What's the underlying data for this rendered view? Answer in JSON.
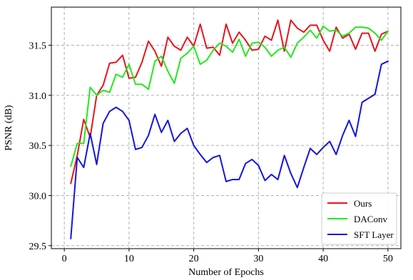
{
  "chart_data": {
    "type": "line",
    "title": "",
    "xlabel": "Number of Epochs",
    "ylabel": "PSNR (dB)",
    "xlim": [
      -2,
      52
    ],
    "ylim": [
      29.47,
      31.88
    ],
    "xticks": [
      0,
      10,
      20,
      30,
      40,
      50
    ],
    "yticks": [
      29.5,
      30.0,
      30.5,
      31.0,
      31.5
    ],
    "ytick_labels": [
      "29.5",
      "30.0",
      "30.5",
      "31.0",
      "31.5"
    ],
    "grid": true,
    "grid_style": "dashed",
    "legend_position": "lower-right",
    "x": [
      1,
      2,
      3,
      4,
      5,
      6,
      7,
      8,
      9,
      10,
      11,
      12,
      13,
      14,
      15,
      16,
      17,
      18,
      19,
      20,
      21,
      22,
      23,
      24,
      25,
      26,
      27,
      28,
      29,
      30,
      31,
      32,
      33,
      34,
      35,
      36,
      37,
      38,
      39,
      40,
      41,
      42,
      43,
      44,
      45,
      46,
      47,
      48,
      49,
      50
    ],
    "series": [
      {
        "name": "Ours",
        "color": "#e8141c",
        "values": [
          30.12,
          30.4,
          30.76,
          30.58,
          31.0,
          31.1,
          31.32,
          31.33,
          31.4,
          31.17,
          31.18,
          31.33,
          31.54,
          31.44,
          31.29,
          31.58,
          31.49,
          31.45,
          31.58,
          31.49,
          31.71,
          31.47,
          31.48,
          31.4,
          31.71,
          31.52,
          31.63,
          31.55,
          31.45,
          31.46,
          31.59,
          31.55,
          31.75,
          31.44,
          31.75,
          31.67,
          31.63,
          31.7,
          31.7,
          31.55,
          31.44,
          31.68,
          31.57,
          31.61,
          31.46,
          31.62,
          31.62,
          31.44,
          31.61,
          31.64
        ]
      },
      {
        "name": "DAConv",
        "color": "#22e81e",
        "values": [
          30.29,
          30.52,
          30.52,
          31.08,
          31.0,
          31.05,
          31.03,
          31.21,
          31.18,
          31.31,
          31.11,
          31.11,
          31.06,
          31.34,
          31.39,
          31.24,
          31.12,
          31.37,
          31.42,
          31.49,
          31.31,
          31.35,
          31.45,
          31.52,
          31.49,
          31.43,
          31.56,
          31.39,
          31.52,
          31.53,
          31.48,
          31.39,
          31.45,
          31.48,
          31.38,
          31.52,
          31.58,
          31.65,
          31.57,
          31.69,
          31.64,
          31.65,
          31.59,
          31.62,
          31.68,
          31.68,
          31.67,
          31.62,
          31.55,
          31.64
        ]
      },
      {
        "name": "SFT Layer",
        "color": "#1414e0",
        "values": [
          29.57,
          30.38,
          30.28,
          30.62,
          30.31,
          30.72,
          30.84,
          30.88,
          30.84,
          30.75,
          30.46,
          30.48,
          30.6,
          30.81,
          30.63,
          30.75,
          30.54,
          30.62,
          30.67,
          30.5,
          30.41,
          30.33,
          30.38,
          30.4,
          30.14,
          30.16,
          30.16,
          30.32,
          30.36,
          30.3,
          30.15,
          30.21,
          30.16,
          30.4,
          30.22,
          30.08,
          30.28,
          30.47,
          30.41,
          30.48,
          30.54,
          30.41,
          30.6,
          30.75,
          30.59,
          30.93,
          30.97,
          31.01,
          31.31,
          31.34
        ]
      }
    ]
  }
}
